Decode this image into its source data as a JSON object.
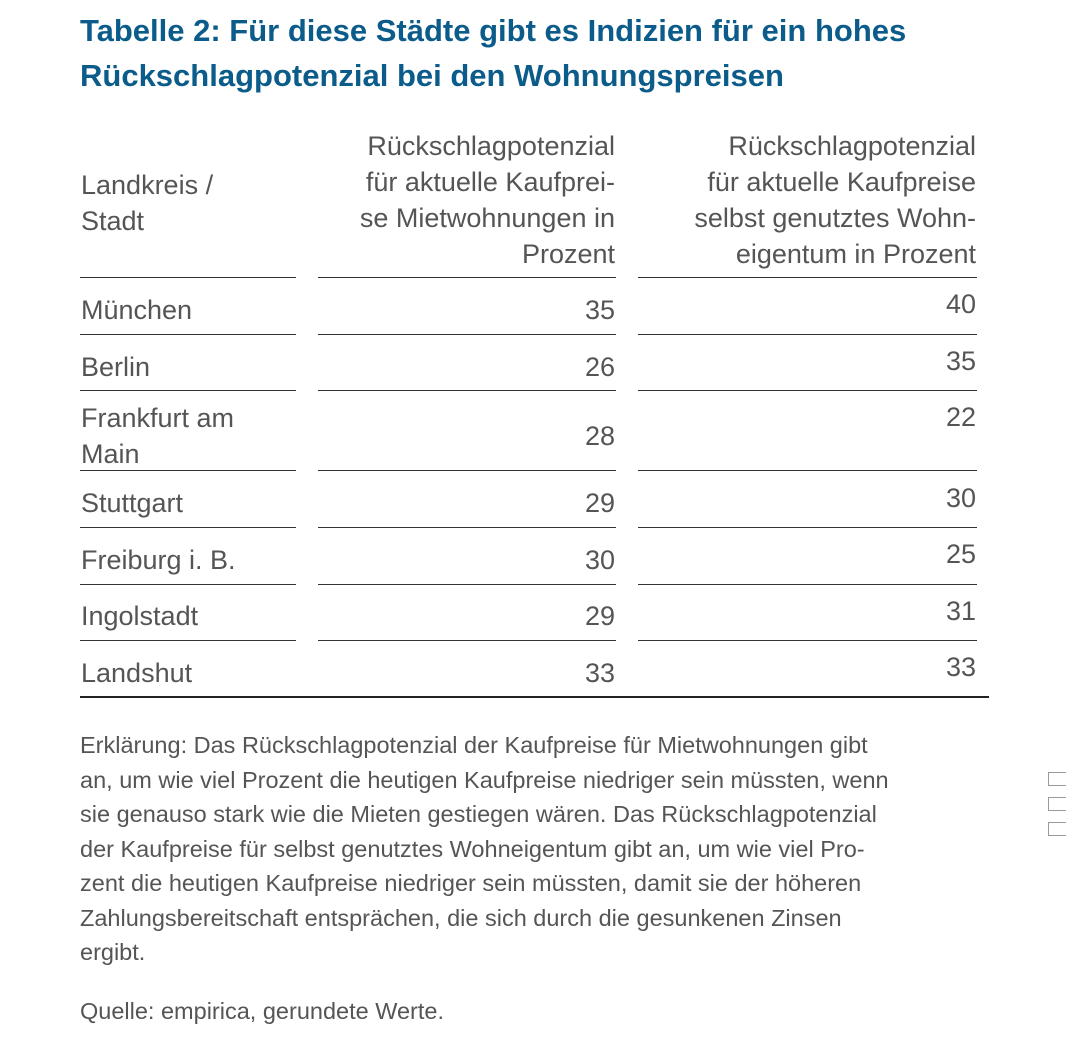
{
  "title": {
    "line1": "Tabelle 2: Für diese Städte gibt es Indizien für ein hohes",
    "line2": "Rückschlagpotenzial bei den Wohnungspreisen"
  },
  "table": {
    "headers": {
      "city": [
        "Landkreis /",
        "Stadt"
      ],
      "col1": [
        "Rückschlagpotenzial",
        "für aktuelle Kaufprei-",
        "se Mietwohnungen in",
        "Prozent"
      ],
      "col2": [
        "Rückschlagpotenzial",
        "für aktuelle Kaufpreise",
        "selbst genutztes Wohn-",
        "eigentum in Prozent"
      ]
    },
    "rows": [
      {
        "city": "München",
        "miet": "35",
        "eigen": "40"
      },
      {
        "city": "Berlin",
        "miet": "26",
        "eigen": "35"
      },
      {
        "city": "Frankfurt am Main",
        "miet": "28",
        "eigen": "22"
      },
      {
        "city": "Stuttgart",
        "miet": "29",
        "eigen": "30"
      },
      {
        "city": "Freiburg i. B.",
        "miet": "30",
        "eigen": "25"
      },
      {
        "city": "Ingolstadt",
        "miet": "29",
        "eigen": "31"
      },
      {
        "city": "Landshut",
        "miet": "33",
        "eigen": "33"
      }
    ]
  },
  "note": {
    "lines": [
      "Erklärung: Das Rückschlagpotenzial der Kaufpreise für Mietwohnungen gibt",
      "an, um wie viel Prozent die heutigen Kaufpreise niedriger sein müssten, wenn",
      "sie genauso stark wie die Mieten gestiegen wären. Das Rückschlagpotenzial",
      "der Kaufpreise für selbst genutztes Wohneigentum gibt an, um wie viel Pro-",
      "zent die heutigen Kaufpreise niedriger sein müssten, damit sie der höheren",
      "Zahlungsbereitschaft entsprächen, die sich durch die gesunkenen Zinsen",
      "ergibt."
    ]
  },
  "source": "Quelle: empirica, gerundete Werte.",
  "colors": {
    "title": "#0b5c8a",
    "text": "#555555",
    "rule": "#333333"
  }
}
